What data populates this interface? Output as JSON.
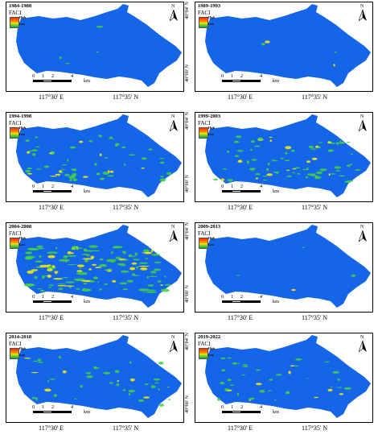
{
  "map_title": "FACI",
  "legend": {
    "high": "High",
    "low": "Low"
  },
  "north_label": "N",
  "scale": {
    "ticks": [
      "0",
      "1",
      "2",
      "4"
    ],
    "unit": "km"
  },
  "lat_labels": [
    "40°04' N",
    "40°00' N"
  ],
  "lon_labels": [
    "117°30' E",
    "117°35' N"
  ],
  "colors": {
    "base": "#1565e8",
    "high": "#ff2a00",
    "mid": "#ffee00",
    "low": "#00a84f",
    "veg": "#3fd33f"
  },
  "panels": [
    {
      "period": "1984-1988",
      "intensity": "very-low"
    },
    {
      "period": "1989-1993",
      "intensity": "very-low"
    },
    {
      "period": "1994-1998",
      "intensity": "medium"
    },
    {
      "period": "1999-2003",
      "intensity": "medium-high"
    },
    {
      "period": "2004-2008",
      "intensity": "high"
    },
    {
      "period": "2009-2013",
      "intensity": "very-low"
    },
    {
      "period": "2014-2018",
      "intensity": "low-medium"
    },
    {
      "period": "2019-2022",
      "intensity": "low-medium"
    }
  ]
}
